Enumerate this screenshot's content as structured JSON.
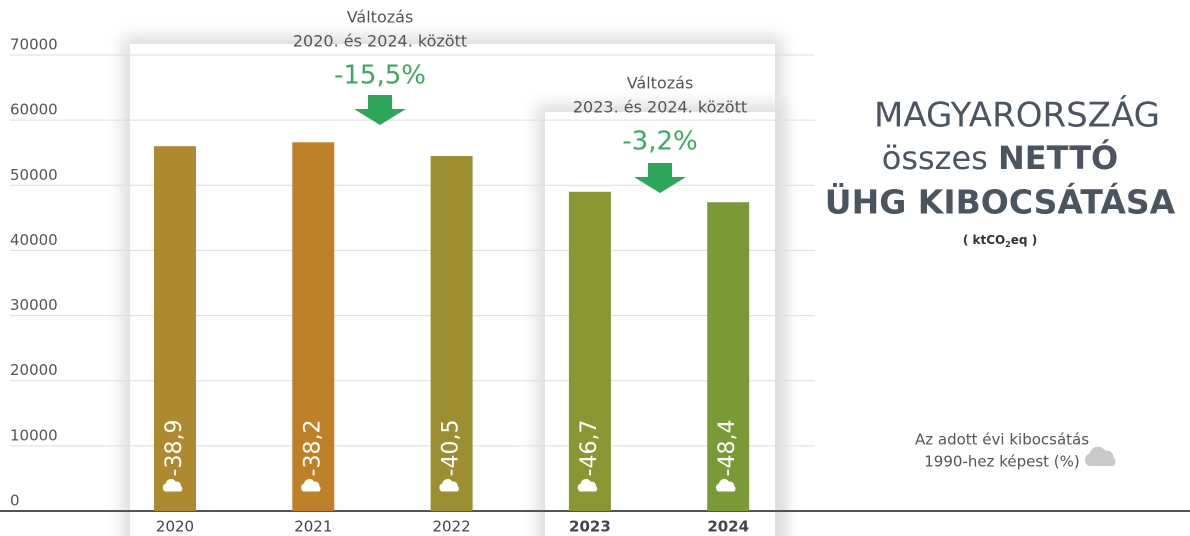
{
  "chart_data": {
    "type": "bar",
    "title_lines": [
      "MAGYARORSZÁG",
      "összes",
      "NETTÓ",
      "ÜHG KIBOCSÁTÁSA"
    ],
    "unit": [
      "( ktCO",
      "2",
      "eq )"
    ],
    "categories": [
      "2020",
      "2021",
      "2022",
      "2023",
      "2024"
    ],
    "series": [
      {
        "name": "Nettó ÜHG kibocsátás",
        "colors": [
          "#ad8a2f",
          "#be8128",
          "#9c8e31",
          "#8a9631",
          "#7a9a37"
        ],
        "values": [
          56000,
          56600,
          54500,
          49000,
          47400
        ]
      }
    ],
    "change_1990": {
      "note": [
        "Az adott évi kibocsátás",
        "1990-hez képest (%)"
      ],
      "values": [
        -38.9,
        -38.2,
        -40.5,
        -46.7,
        -48.4
      ],
      "value_labels": [
        "-38,9",
        "-38,2",
        "-40,5",
        "-46,7",
        "-48,4"
      ]
    },
    "annotations": [
      {
        "lines": [
          "Változás",
          "2020. és 2024. között"
        ],
        "change": "-15,5%"
      },
      {
        "lines": [
          "Változás",
          "2023. és 2024. között"
        ],
        "change": "-3,2%"
      }
    ],
    "ylim": [
      0,
      70000
    ],
    "yticks": [
      0,
      10000,
      20000,
      30000,
      40000,
      50000,
      60000,
      70000
    ],
    "grid": true
  }
}
